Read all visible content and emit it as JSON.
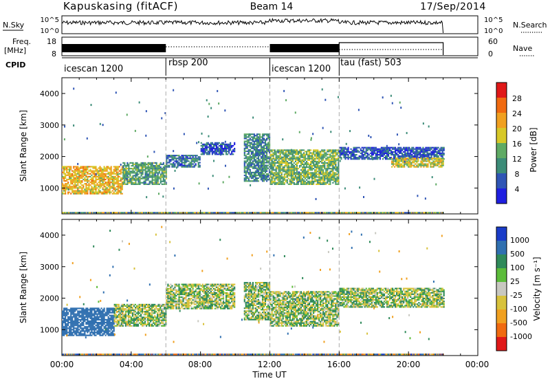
{
  "header": {
    "station": "Kapuskasing (fitACF)",
    "beam": "Beam 14",
    "date": "17/Sep/2014"
  },
  "noise_panel": {
    "left_label": "N.Sky",
    "left_ticks": [
      "10^5",
      "10^0"
    ],
    "right_ticks": [
      "10^5",
      "10^0"
    ],
    "right_label": "N.Search"
  },
  "freq_panel": {
    "left_label": "Freq.",
    "left_unit": "[MHz]",
    "left_ticks": [
      "18",
      "8"
    ],
    "right_ticks": [
      "60",
      "0"
    ],
    "right_label": "Nave"
  },
  "cpid": {
    "label": "CPID",
    "segments": [
      {
        "name": "icescan 1200",
        "start": 0,
        "end": 6
      },
      {
        "name": "rbsp 200",
        "start": 6,
        "end": 12
      },
      {
        "name": "icescan 1200",
        "start": 12,
        "end": 16
      },
      {
        "name": "tau (fast) 503",
        "start": 16,
        "end": 22
      }
    ]
  },
  "axes": {
    "x_ticks": [
      "00:00",
      "04:00",
      "08:00",
      "12:00",
      "16:00",
      "20:00",
      "00:00"
    ],
    "xlabel": "Time UT",
    "y_ticks": [
      "1000",
      "2000",
      "3000",
      "4000"
    ],
    "ylabel": "Slant Range [km]"
  },
  "power_colorbar": {
    "label": "Power [dB]",
    "ticks": [
      "4",
      "8",
      "12",
      "16",
      "20",
      "24",
      "28"
    ],
    "colors": [
      "#1f1fe0",
      "#2f55b5",
      "#3c8c78",
      "#5faa64",
      "#d7c828",
      "#f0a020",
      "#f06a10",
      "#e01818"
    ]
  },
  "velocity_colorbar": {
    "label": "Velocity [m s⁻¹]",
    "ticks": [
      "1000",
      "500",
      "100",
      "25",
      "-25",
      "-100",
      "-500",
      "-1000"
    ],
    "colors": [
      "#1a3cc8",
      "#3070b0",
      "#2f8a5a",
      "#5cbc3a",
      "#c8c8c0",
      "#d8c23c",
      "#f0a020",
      "#f06a10",
      "#e01818"
    ]
  },
  "chart_data": {
    "type": "heatmap",
    "title": "Kapuskasing (fitACF) Beam 14 17/Sep/2014",
    "xlabel": "Time UT",
    "ylabel": "Slant Range [km]",
    "xlim_hours": [
      0,
      24
    ],
    "ylim_km": [
      180,
      4500
    ],
    "data_end_hour": 22,
    "mode_boundaries_hours": [
      6,
      12,
      16
    ],
    "panels": [
      {
        "name": "Power",
        "unit": "dB",
        "regions": [
          {
            "t0": 0,
            "t1": 3.5,
            "r0": 800,
            "r1": 1700,
            "level": 20
          },
          {
            "t0": 3.5,
            "t1": 6,
            "r0": 1100,
            "r1": 1800,
            "level": 12
          },
          {
            "t0": 6,
            "t1": 8,
            "r0": 1650,
            "r1": 2050,
            "level": 8
          },
          {
            "t0": 8,
            "t1": 10,
            "r0": 2050,
            "r1": 2450,
            "level": 6
          },
          {
            "t0": 10.5,
            "t1": 12,
            "r0": 1200,
            "r1": 2700,
            "level": 10
          },
          {
            "t0": 12,
            "t1": 16,
            "r0": 1100,
            "r1": 2200,
            "level": 14
          },
          {
            "t0": 16,
            "t1": 22,
            "r0": 1900,
            "r1": 2300,
            "level": 6
          },
          {
            "t0": 19,
            "t1": 22,
            "r0": 1650,
            "r1": 1950,
            "level": 18
          }
        ]
      },
      {
        "name": "Velocity",
        "unit": "m s-1",
        "regions": [
          {
            "t0": 0,
            "t1": 3,
            "r0": 800,
            "r1": 1700,
            "level": 300
          },
          {
            "t0": 3,
            "t1": 6,
            "r0": 1100,
            "r1": 1800,
            "level": 0
          },
          {
            "t0": 6,
            "t1": 10,
            "r0": 1650,
            "r1": 2450,
            "level": 0
          },
          {
            "t0": 10.5,
            "t1": 12,
            "r0": 1300,
            "r1": 2500,
            "level": 0
          },
          {
            "t0": 12,
            "t1": 16,
            "r0": 1100,
            "r1": 2200,
            "level": 0
          },
          {
            "t0": 16,
            "t1": 22,
            "r0": 1700,
            "r1": 2300,
            "level": 0
          }
        ]
      }
    ]
  }
}
